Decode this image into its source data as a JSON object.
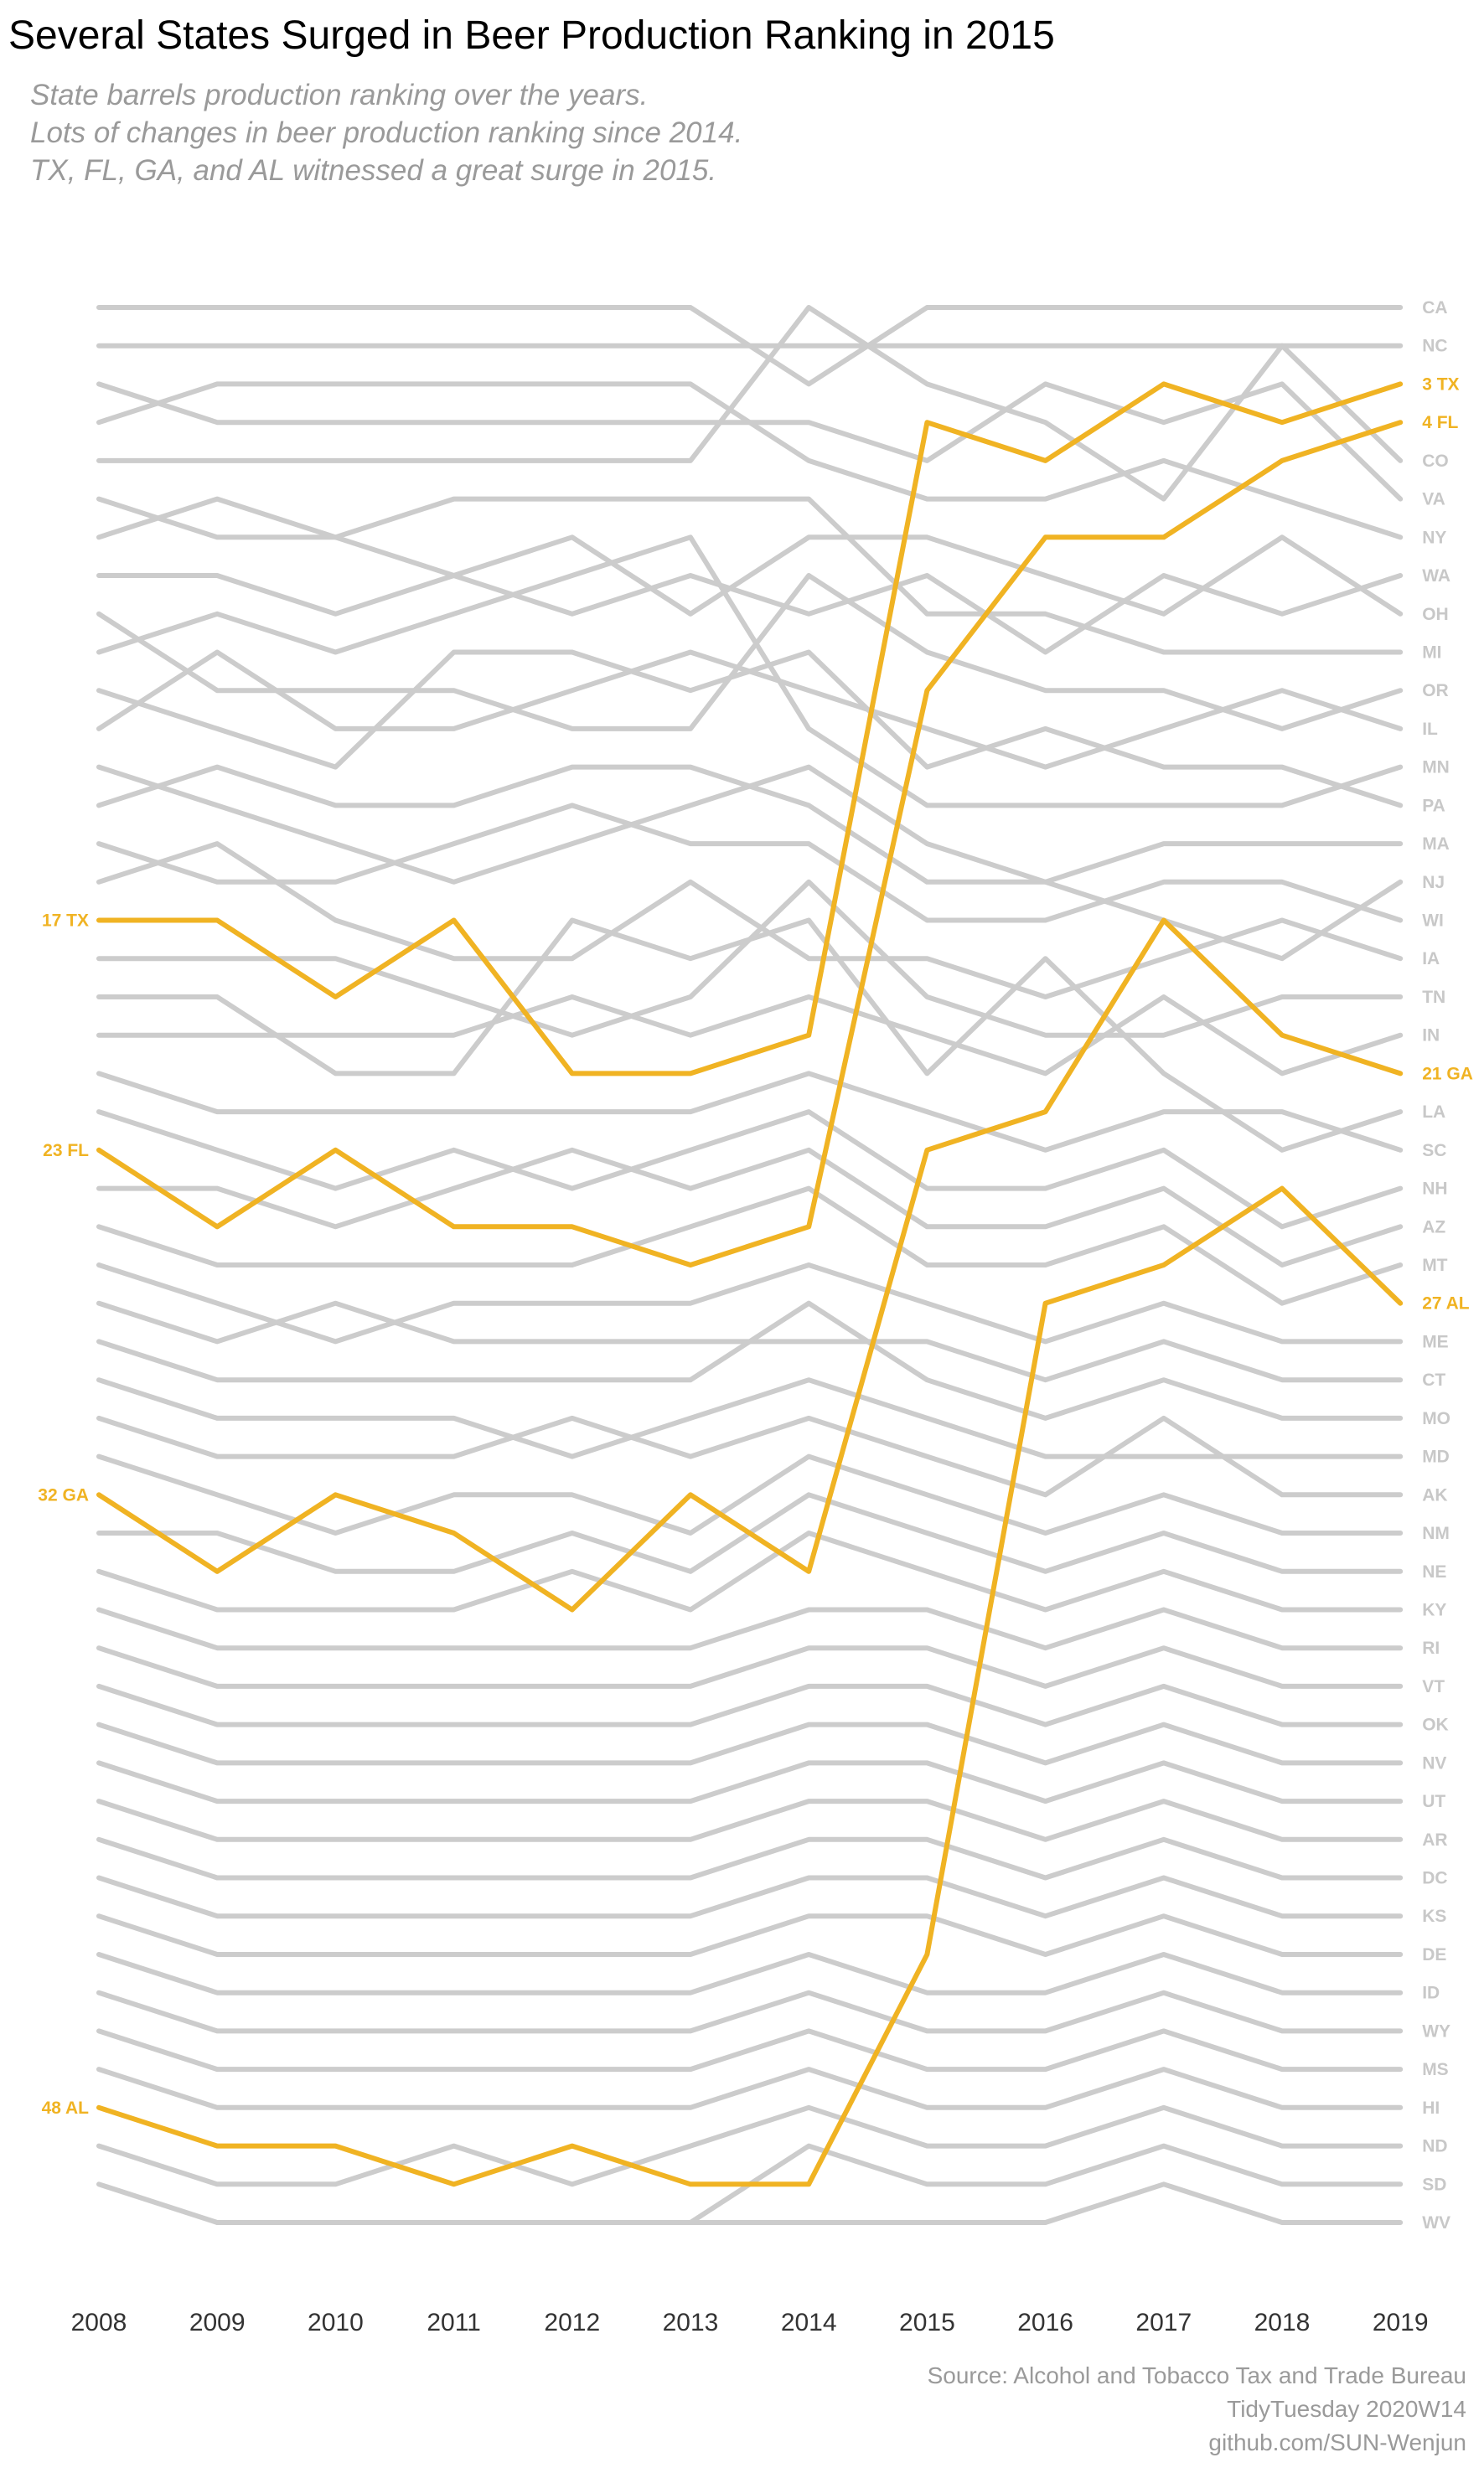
{
  "title": "Several States Surged in Beer Production Ranking in 2015",
  "subtitle": [
    "State barrels production ranking over the years.",
    "Lots of changes in beer production ranking since 2014.",
    "TX, FL, GA, and AL witnessed a great surge in 2015."
  ],
  "caption": [
    "Source: Alcohol and Tobacco Tax and Trade Bureau",
    "TidyTuesday 2020W14",
    "github.com/SUN-Wenjun"
  ],
  "colors": {
    "background": "#ffffff",
    "other_states": "#cccccc",
    "highlight": "#f0b323"
  },
  "chart_data": {
    "type": "line",
    "title": "Several States Surged in Beer Production Ranking in 2015",
    "x": [
      2008,
      2009,
      2010,
      2011,
      2012,
      2013,
      2014,
      2015,
      2016,
      2017,
      2018,
      2019
    ],
    "y_reversed": true,
    "ylim": [
      1,
      51
    ],
    "grid": false,
    "legend": "none",
    "highlight": [
      "TX",
      "FL",
      "GA",
      "AL"
    ],
    "start_labels": [
      "17 TX",
      "23 FL",
      "32 GA",
      "48 AL"
    ],
    "end_labels": [
      "CA",
      "NC",
      "3 TX",
      "4 FL",
      "CO",
      "VA",
      "NY",
      "WA",
      "OH",
      "MI",
      "OR",
      "IL",
      "MN",
      "PA",
      "MA",
      "NJ",
      "WI",
      "IA",
      "TN",
      "IN",
      "21 GA",
      "LA",
      "SC",
      "NH",
      "AZ",
      "MT",
      "27 AL",
      "ME",
      "CT",
      "MO",
      "MD",
      "AK",
      "NM",
      "NE",
      "KY",
      "RI",
      "VT",
      "OK",
      "NV",
      "UT",
      "AR",
      "DC",
      "KS",
      "DE",
      "ID",
      "WY",
      "MS",
      "HI",
      "ND",
      "SD",
      "WV"
    ],
    "series": [
      {
        "name": "TX",
        "values": [
          17,
          17,
          19,
          17,
          21,
          21,
          20,
          4,
          5,
          3,
          4,
          3
        ]
      },
      {
        "name": "FL",
        "values": [
          23,
          25,
          23,
          25,
          25,
          26,
          25,
          11,
          7,
          7,
          5,
          4
        ]
      },
      {
        "name": "GA",
        "values": [
          32,
          34,
          32,
          33,
          35,
          32,
          34,
          23,
          22,
          17,
          20,
          21
        ]
      },
      {
        "name": "AL",
        "values": [
          48,
          49,
          49,
          50,
          49,
          50,
          50,
          44,
          27,
          26,
          24,
          27
        ]
      },
      {
        "values": [
          1,
          1,
          1,
          1,
          1,
          1,
          3,
          1,
          1,
          1,
          1,
          1
        ]
      },
      {
        "values": [
          2,
          2,
          2,
          2,
          2,
          2,
          2,
          2,
          2,
          2,
          2,
          2
        ]
      },
      {
        "values": [
          5,
          5,
          5,
          5,
          5,
          5,
          1,
          3,
          4,
          6,
          2,
          5
        ]
      },
      {
        "values": [
          3,
          4,
          4,
          4,
          4,
          4,
          4,
          5,
          3,
          4,
          3,
          6
        ]
      },
      {
        "values": [
          4,
          3,
          3,
          3,
          3,
          3,
          5,
          6,
          6,
          5,
          6,
          7
        ]
      },
      {
        "values": [
          7,
          6,
          7,
          8,
          9,
          8,
          9,
          8,
          10,
          8,
          9,
          8
        ]
      },
      {
        "values": [
          8,
          8,
          9,
          8,
          7,
          9,
          7,
          7,
          8,
          9,
          7,
          9
        ]
      },
      {
        "values": [
          6,
          7,
          7,
          6,
          6,
          6,
          6,
          9,
          9,
          10,
          10,
          10
        ]
      },
      {
        "values": [
          9,
          11,
          11,
          11,
          12,
          12,
          8,
          10,
          11,
          11,
          12,
          11
        ]
      },
      {
        "values": [
          12,
          10,
          12,
          12,
          11,
          10,
          11,
          12,
          13,
          12,
          11,
          12
        ]
      },
      {
        "values": [
          11,
          12,
          13,
          10,
          10,
          11,
          10,
          13,
          12,
          13,
          13,
          14
        ]
      },
      {
        "values": [
          10,
          9,
          10,
          9,
          8,
          7,
          12,
          14,
          14,
          14,
          14,
          13
        ]
      },
      {
        "values": [
          13,
          14,
          15,
          16,
          15,
          14,
          13,
          15,
          16,
          15,
          15,
          15
        ]
      },
      {
        "values": [
          14,
          13,
          14,
          14,
          13,
          13,
          14,
          16,
          16,
          17,
          18,
          16
        ]
      },
      {
        "values": [
          15,
          16,
          16,
          15,
          14,
          15,
          15,
          17,
          17,
          16,
          16,
          17
        ]
      },
      {
        "values": [
          16,
          15,
          17,
          18,
          18,
          16,
          18,
          18,
          19,
          18,
          17,
          18
        ]
      },
      {
        "values": [
          18,
          18,
          18,
          19,
          20,
          19,
          16,
          19,
          20,
          20,
          19,
          19
        ]
      },
      {
        "values": [
          20,
          20,
          20,
          20,
          19,
          20,
          19,
          20,
          21,
          19,
          21,
          20
        ]
      },
      {
        "values": [
          19,
          19,
          21,
          21,
          17,
          18,
          17,
          21,
          18,
          21,
          23,
          22
        ]
      },
      {
        "values": [
          21,
          22,
          22,
          22,
          22,
          22,
          21,
          22,
          23,
          22,
          22,
          23
        ]
      },
      {
        "values": [
          22,
          23,
          24,
          23,
          24,
          23,
          22,
          24,
          24,
          23,
          25,
          24
        ]
      },
      {
        "values": [
          24,
          24,
          25,
          24,
          23,
          24,
          23,
          25,
          25,
          24,
          26,
          25
        ]
      },
      {
        "values": [
          25,
          26,
          26,
          26,
          26,
          25,
          24,
          26,
          26,
          25,
          27,
          26
        ]
      },
      {
        "values": [
          26,
          27,
          28,
          27,
          27,
          27,
          26,
          27,
          28,
          27,
          28,
          28
        ]
      },
      {
        "values": [
          27,
          28,
          27,
          28,
          28,
          28,
          28,
          28,
          29,
          28,
          29,
          29
        ]
      },
      {
        "values": [
          28,
          29,
          29,
          29,
          29,
          29,
          27,
          29,
          30,
          29,
          30,
          30
        ]
      },
      {
        "values": [
          29,
          30,
          30,
          30,
          31,
          30,
          29,
          30,
          31,
          31,
          31,
          31
        ]
      },
      {
        "values": [
          30,
          31,
          31,
          31,
          30,
          31,
          30,
          31,
          32,
          30,
          32,
          32
        ]
      },
      {
        "values": [
          31,
          32,
          33,
          32,
          32,
          33,
          31,
          32,
          33,
          32,
          33,
          33
        ]
      },
      {
        "values": [
          33,
          33,
          34,
          34,
          33,
          34,
          32,
          33,
          34,
          33,
          34,
          34
        ]
      },
      {
        "values": [
          34,
          35,
          35,
          35,
          34,
          35,
          33,
          34,
          35,
          34,
          35,
          35
        ]
      },
      {
        "values": [
          35,
          36,
          36,
          36,
          36,
          36,
          35,
          35,
          36,
          35,
          36,
          36
        ]
      },
      {
        "values": [
          36,
          37,
          37,
          37,
          37,
          37,
          36,
          36,
          37,
          36,
          37,
          37
        ]
      },
      {
        "values": [
          37,
          38,
          38,
          38,
          38,
          38,
          37,
          37,
          38,
          37,
          38,
          38
        ]
      },
      {
        "values": [
          38,
          39,
          39,
          39,
          39,
          39,
          38,
          38,
          39,
          38,
          39,
          39
        ]
      },
      {
        "values": [
          39,
          40,
          40,
          40,
          40,
          40,
          39,
          39,
          40,
          39,
          40,
          40
        ]
      },
      {
        "values": [
          40,
          41,
          41,
          41,
          41,
          41,
          40,
          40,
          41,
          40,
          41,
          41
        ]
      },
      {
        "values": [
          41,
          42,
          42,
          42,
          42,
          42,
          41,
          41,
          42,
          41,
          42,
          42
        ]
      },
      {
        "values": [
          42,
          43,
          43,
          43,
          43,
          43,
          42,
          42,
          43,
          42,
          43,
          43
        ]
      },
      {
        "values": [
          43,
          44,
          44,
          44,
          44,
          44,
          43,
          43,
          44,
          43,
          44,
          44
        ]
      },
      {
        "values": [
          44,
          45,
          45,
          45,
          45,
          45,
          44,
          45,
          45,
          44,
          45,
          45
        ]
      },
      {
        "values": [
          45,
          46,
          46,
          46,
          46,
          46,
          45,
          46,
          46,
          45,
          46,
          46
        ]
      },
      {
        "values": [
          46,
          47,
          47,
          47,
          47,
          47,
          46,
          47,
          47,
          46,
          47,
          47
        ]
      },
      {
        "values": [
          47,
          48,
          48,
          48,
          48,
          48,
          47,
          48,
          48,
          47,
          48,
          48
        ]
      },
      {
        "values": [
          49,
          50,
          50,
          49,
          50,
          49,
          48,
          49,
          49,
          48,
          49,
          49
        ]
      },
      {
        "values": [
          50,
          51,
          51,
          51,
          51,
          51,
          49,
          50,
          50,
          49,
          50,
          50
        ]
      },
      {
        "values": [
          null,
          51,
          51,
          51,
          51,
          51,
          51,
          51,
          51,
          50,
          51,
          51
        ]
      }
    ]
  }
}
